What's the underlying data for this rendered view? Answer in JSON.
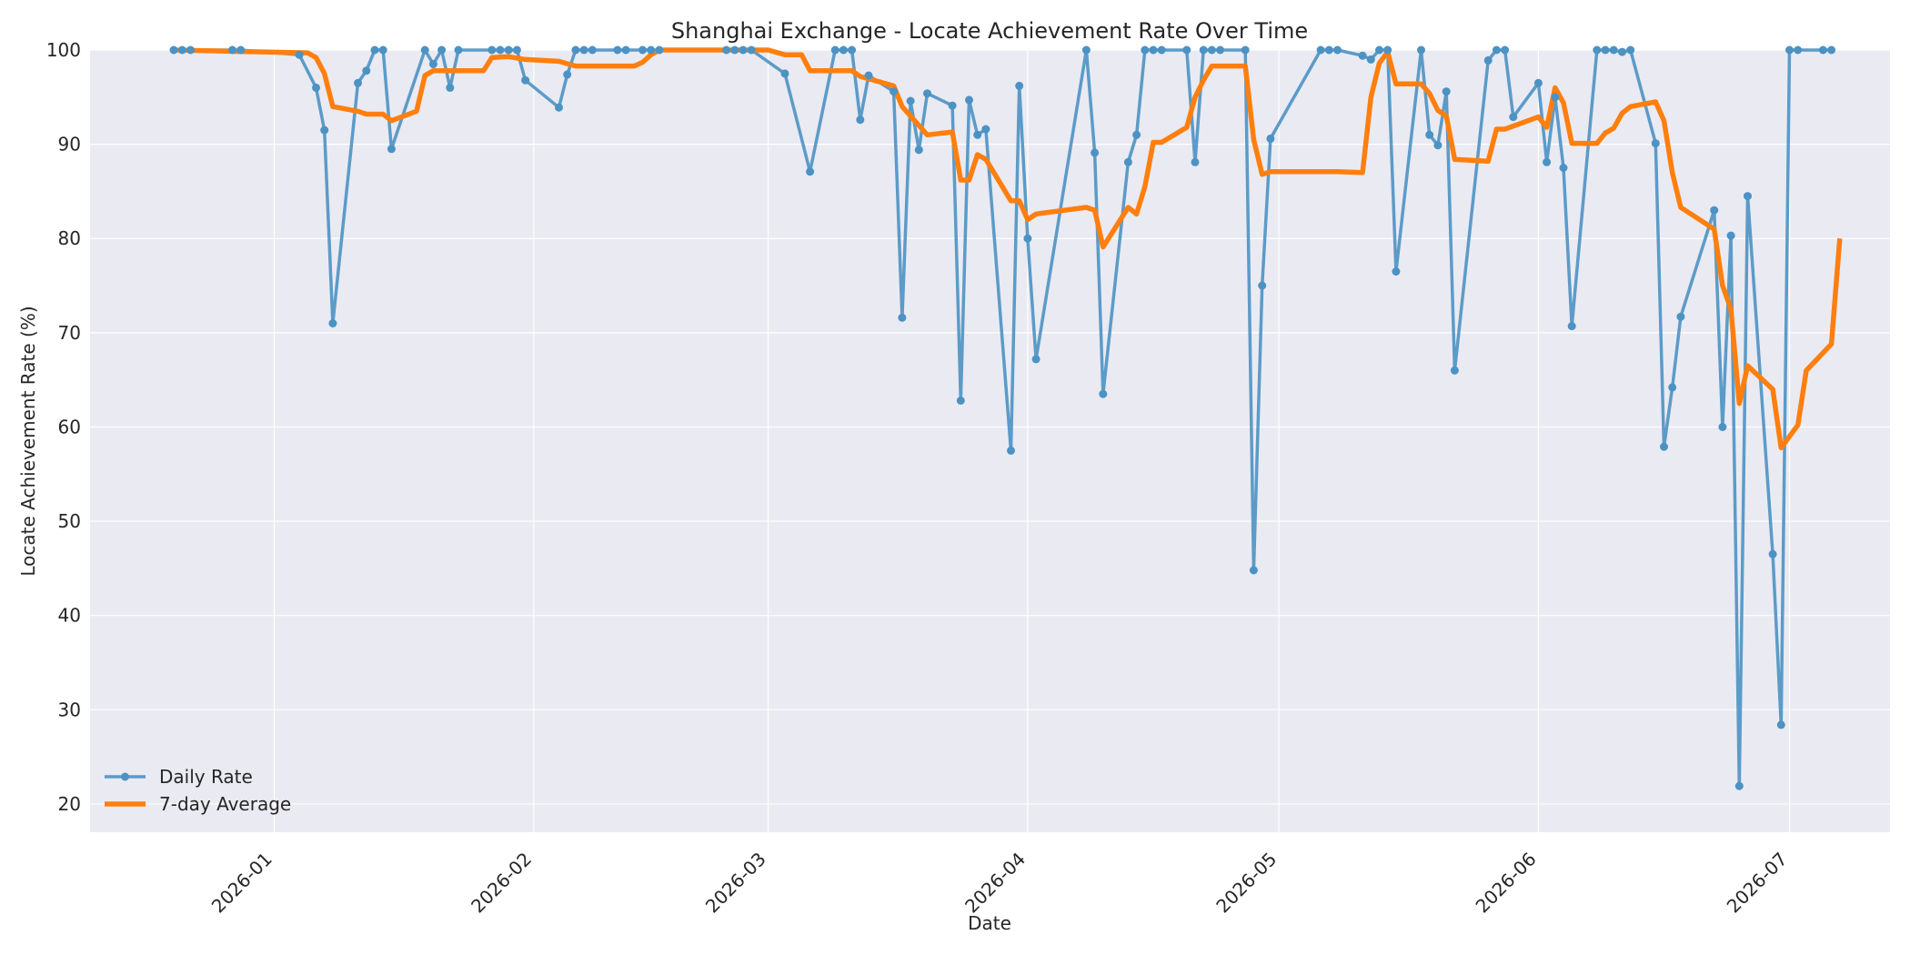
{
  "chart_data": {
    "type": "line",
    "title": "Shanghai Exchange - Locate Achievement Rate Over Time",
    "xlabel": "Date",
    "ylabel": "Locate Achievement Rate (%)",
    "x_axis_type": "date",
    "xlim": [
      "2025-12-10",
      "2026-07-13"
    ],
    "ylim": [
      17,
      100
    ],
    "x_ticks": [
      {
        "date": "2026-01-01",
        "label": "2026-01"
      },
      {
        "date": "2026-02-01",
        "label": "2026-02"
      },
      {
        "date": "2026-03-01",
        "label": "2026-03"
      },
      {
        "date": "2026-04-01",
        "label": "2026-04"
      },
      {
        "date": "2026-05-01",
        "label": "2026-05"
      },
      {
        "date": "2026-06-01",
        "label": "2026-06"
      },
      {
        "date": "2026-07-01",
        "label": "2026-07"
      }
    ],
    "y_ticks": [
      20,
      30,
      40,
      50,
      60,
      70,
      80,
      90,
      100
    ],
    "grid": true,
    "legend_position": "bottom-left",
    "colors": {
      "background": "#eaeaf2",
      "grid": "#ffffff",
      "daily": "#4c92c3",
      "average": "#ff7f0e"
    },
    "series": [
      {
        "name": "Daily Rate",
        "marker": "circle",
        "points": [
          [
            "2025-12-20",
            100
          ],
          [
            "2025-12-21",
            100
          ],
          [
            "2025-12-22",
            100
          ],
          [
            "2025-12-27",
            100
          ],
          [
            "2025-12-28",
            100
          ],
          [
            "2026-01-04",
            99.5
          ],
          [
            "2026-01-06",
            96
          ],
          [
            "2026-01-07",
            91.5
          ],
          [
            "2026-01-08",
            71
          ],
          [
            "2026-01-11",
            96.5
          ],
          [
            "2026-01-12",
            97.8
          ],
          [
            "2026-01-13",
            100
          ],
          [
            "2026-01-14",
            100
          ],
          [
            "2026-01-15",
            89.5
          ],
          [
            "2026-01-19",
            100
          ],
          [
            "2026-01-20",
            98.5
          ],
          [
            "2026-01-21",
            100
          ],
          [
            "2026-01-22",
            96
          ],
          [
            "2026-01-23",
            100
          ],
          [
            "2026-01-27",
            100
          ],
          [
            "2026-01-28",
            100
          ],
          [
            "2026-01-29",
            100
          ],
          [
            "2026-01-30",
            100
          ],
          [
            "2026-01-31",
            96.8
          ],
          [
            "2026-02-04",
            93.9
          ],
          [
            "2026-02-05",
            97.4
          ],
          [
            "2026-02-06",
            100
          ],
          [
            "2026-02-07",
            100
          ],
          [
            "2026-02-08",
            100
          ],
          [
            "2026-02-11",
            100
          ],
          [
            "2026-02-12",
            100
          ],
          [
            "2026-02-14",
            100
          ],
          [
            "2026-02-15",
            100
          ],
          [
            "2026-02-16",
            100
          ],
          [
            "2026-02-24",
            100
          ],
          [
            "2026-02-25",
            100
          ],
          [
            "2026-02-26",
            100
          ],
          [
            "2026-02-27",
            100
          ],
          [
            "2026-03-03",
            97.5
          ],
          [
            "2026-03-06",
            87.1
          ],
          [
            "2026-03-09",
            100
          ],
          [
            "2026-03-10",
            100
          ],
          [
            "2026-03-11",
            100
          ],
          [
            "2026-03-12",
            92.6
          ],
          [
            "2026-03-13",
            97.3
          ],
          [
            "2026-03-16",
            95.6
          ],
          [
            "2026-03-17",
            71.6
          ],
          [
            "2026-03-18",
            94.6
          ],
          [
            "2026-03-19",
            89.4
          ],
          [
            "2026-03-20",
            95.4
          ],
          [
            "2026-03-23",
            94.1
          ],
          [
            "2026-03-24",
            62.8
          ],
          [
            "2026-03-25",
            94.7
          ],
          [
            "2026-03-26",
            91
          ],
          [
            "2026-03-27",
            91.6
          ],
          [
            "2026-03-30",
            57.5
          ],
          [
            "2026-03-31",
            96.2
          ],
          [
            "2026-04-01",
            80
          ],
          [
            "2026-04-02",
            67.2
          ],
          [
            "2026-04-08",
            100
          ],
          [
            "2026-04-09",
            89.1
          ],
          [
            "2026-04-10",
            63.5
          ],
          [
            "2026-04-13",
            88.1
          ],
          [
            "2026-04-14",
            91
          ],
          [
            "2026-04-15",
            100
          ],
          [
            "2026-04-16",
            100
          ],
          [
            "2026-04-17",
            100
          ],
          [
            "2026-04-20",
            100
          ],
          [
            "2026-04-21",
            88.1
          ],
          [
            "2026-04-22",
            100
          ],
          [
            "2026-04-23",
            100
          ],
          [
            "2026-04-24",
            100
          ],
          [
            "2026-04-27",
            100
          ],
          [
            "2026-04-28",
            44.8
          ],
          [
            "2026-04-29",
            75
          ],
          [
            "2026-04-30",
            90.6
          ],
          [
            "2026-05-06",
            100
          ],
          [
            "2026-05-07",
            100
          ],
          [
            "2026-05-08",
            100
          ],
          [
            "2026-05-11",
            99.4
          ],
          [
            "2026-05-12",
            99
          ],
          [
            "2026-05-13",
            100
          ],
          [
            "2026-05-14",
            100
          ],
          [
            "2026-05-15",
            76.5
          ],
          [
            "2026-05-18",
            100
          ],
          [
            "2026-05-19",
            91
          ],
          [
            "2026-05-20",
            89.9
          ],
          [
            "2026-05-21",
            95.6
          ],
          [
            "2026-05-22",
            66
          ],
          [
            "2026-05-26",
            98.9
          ],
          [
            "2026-05-27",
            100
          ],
          [
            "2026-05-28",
            100
          ],
          [
            "2026-05-29",
            92.9
          ],
          [
            "2026-06-01",
            96.5
          ],
          [
            "2026-06-02",
            88.1
          ],
          [
            "2026-06-03",
            95
          ],
          [
            "2026-06-04",
            87.5
          ],
          [
            "2026-06-05",
            70.7
          ],
          [
            "2026-06-08",
            100
          ],
          [
            "2026-06-09",
            100
          ],
          [
            "2026-06-10",
            100
          ],
          [
            "2026-06-11",
            99.8
          ],
          [
            "2026-06-12",
            100
          ],
          [
            "2026-06-15",
            90.1
          ],
          [
            "2026-06-16",
            57.9
          ],
          [
            "2026-06-17",
            64.2
          ],
          [
            "2026-06-18",
            71.7
          ],
          [
            "2026-06-22",
            83
          ],
          [
            "2026-06-23",
            60
          ],
          [
            "2026-06-24",
            80.3
          ],
          [
            "2026-06-25",
            21.9
          ],
          [
            "2026-06-26",
            84.5
          ],
          [
            "2026-06-29",
            46.5
          ],
          [
            "2026-06-30",
            28.4
          ],
          [
            "2026-07-01",
            100
          ],
          [
            "2026-07-02",
            100
          ],
          [
            "2026-07-05",
            100
          ],
          [
            "2026-07-06",
            100
          ]
        ]
      },
      {
        "name": "7-day Average",
        "marker": "none",
        "points": [
          [
            "2025-12-20",
            100
          ],
          [
            "2026-01-05",
            99.7
          ],
          [
            "2026-01-06",
            99.2
          ],
          [
            "2026-01-07",
            97.5
          ],
          [
            "2026-01-08",
            94
          ],
          [
            "2026-01-11",
            93.5
          ],
          [
            "2026-01-12",
            93.2
          ],
          [
            "2026-01-14",
            93.2
          ],
          [
            "2026-01-15",
            92.5
          ],
          [
            "2026-01-18",
            93.5
          ],
          [
            "2026-01-19",
            97.3
          ],
          [
            "2026-01-20",
            97.8
          ],
          [
            "2026-01-26",
            97.8
          ],
          [
            "2026-01-27",
            99.2
          ],
          [
            "2026-01-29",
            99.3
          ],
          [
            "2026-01-31",
            99
          ],
          [
            "2026-02-04",
            98.8
          ],
          [
            "2026-02-06",
            98.3
          ],
          [
            "2026-02-13",
            98.3
          ],
          [
            "2026-02-14",
            98.7
          ],
          [
            "2026-02-15",
            99.5
          ],
          [
            "2026-02-16",
            100
          ],
          [
            "2026-03-01",
            100
          ],
          [
            "2026-03-03",
            99.5
          ],
          [
            "2026-03-05",
            99.5
          ],
          [
            "2026-03-06",
            97.8
          ],
          [
            "2026-03-10",
            97.8
          ],
          [
            "2026-03-11",
            97.8
          ],
          [
            "2026-03-12",
            97.2
          ],
          [
            "2026-03-16",
            96.2
          ],
          [
            "2026-03-17",
            94
          ],
          [
            "2026-03-18",
            93
          ],
          [
            "2026-03-19",
            92
          ],
          [
            "2026-03-20",
            91
          ],
          [
            "2026-03-23",
            91.3
          ],
          [
            "2026-03-24",
            86.2
          ],
          [
            "2026-03-25",
            86.2
          ],
          [
            "2026-03-26",
            88.9
          ],
          [
            "2026-03-27",
            88.4
          ],
          [
            "2026-03-30",
            84
          ],
          [
            "2026-03-31",
            84
          ],
          [
            "2026-04-01",
            82
          ],
          [
            "2026-04-02",
            82.6
          ],
          [
            "2026-04-08",
            83.3
          ],
          [
            "2026-04-09",
            83
          ],
          [
            "2026-04-10",
            79.1
          ],
          [
            "2026-04-13",
            83.3
          ],
          [
            "2026-04-14",
            82.6
          ],
          [
            "2026-04-15",
            85.5
          ],
          [
            "2026-04-16",
            90.2
          ],
          [
            "2026-04-17",
            90.2
          ],
          [
            "2026-04-20",
            91.8
          ],
          [
            "2026-04-21",
            95
          ],
          [
            "2026-04-22",
            96.8
          ],
          [
            "2026-04-23",
            98.3
          ],
          [
            "2026-04-27",
            98.3
          ],
          [
            "2026-04-28",
            90.5
          ],
          [
            "2026-04-29",
            86.8
          ],
          [
            "2026-04-30",
            87.1
          ],
          [
            "2026-05-08",
            87.1
          ],
          [
            "2026-05-11",
            87
          ],
          [
            "2026-05-12",
            95
          ],
          [
            "2026-05-13",
            98.6
          ],
          [
            "2026-05-14",
            99.8
          ],
          [
            "2026-05-15",
            96.4
          ],
          [
            "2026-05-18",
            96.4
          ],
          [
            "2026-05-19",
            95.4
          ],
          [
            "2026-05-20",
            93.6
          ],
          [
            "2026-05-21",
            93
          ],
          [
            "2026-05-22",
            88.4
          ],
          [
            "2026-05-26",
            88.2
          ],
          [
            "2026-05-27",
            91.6
          ],
          [
            "2026-05-28",
            91.6
          ],
          [
            "2026-06-01",
            92.9
          ],
          [
            "2026-06-02",
            91.8
          ],
          [
            "2026-06-03",
            96
          ],
          [
            "2026-06-04",
            94.4
          ],
          [
            "2026-06-05",
            90.1
          ],
          [
            "2026-06-08",
            90.1
          ],
          [
            "2026-06-09",
            91.2
          ],
          [
            "2026-06-10",
            91.7
          ],
          [
            "2026-06-11",
            93.3
          ],
          [
            "2026-06-12",
            94
          ],
          [
            "2026-06-15",
            94.5
          ],
          [
            "2026-06-16",
            92.5
          ],
          [
            "2026-06-17",
            87
          ],
          [
            "2026-06-18",
            83.3
          ],
          [
            "2026-06-22",
            81
          ],
          [
            "2026-06-23",
            75
          ],
          [
            "2026-06-24",
            72.5
          ],
          [
            "2026-06-25",
            62.5
          ],
          [
            "2026-06-26",
            66.5
          ],
          [
            "2026-06-29",
            64
          ],
          [
            "2026-06-30",
            57.8
          ],
          [
            "2026-07-02",
            60.2
          ],
          [
            "2026-07-03",
            66
          ],
          [
            "2026-07-06",
            68.8
          ],
          [
            "2026-07-07",
            80
          ]
        ]
      }
    ]
  }
}
